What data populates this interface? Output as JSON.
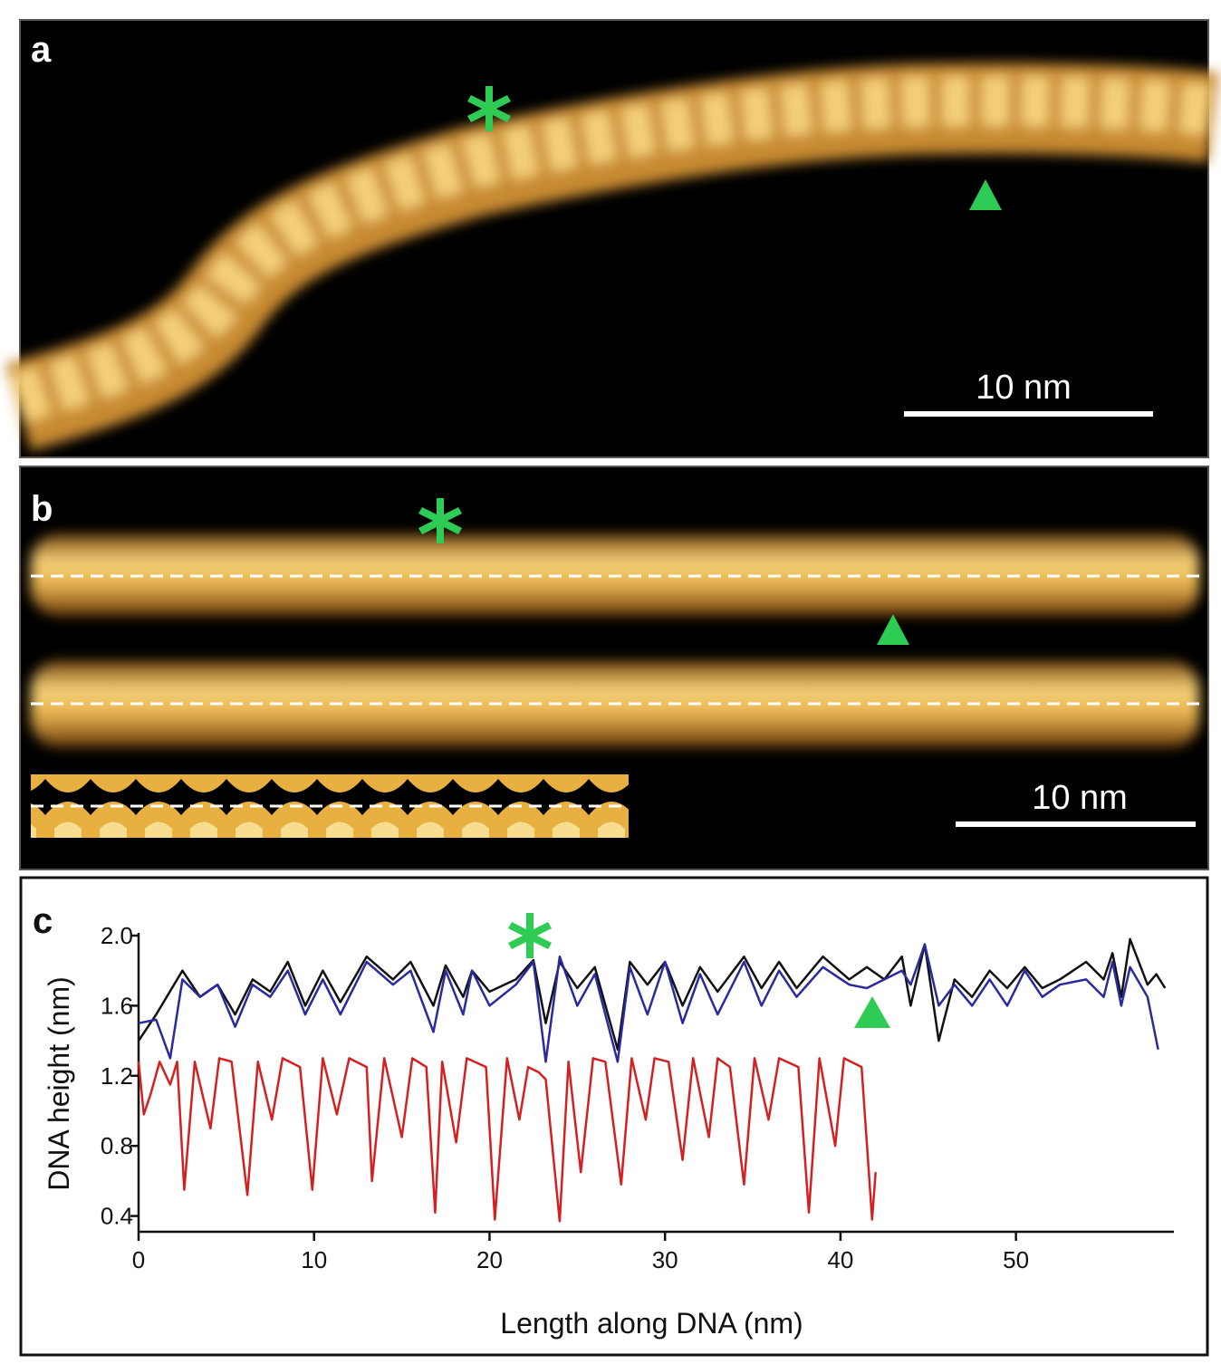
{
  "panels": {
    "a": {
      "label": "a",
      "scale_bar": "10 nm"
    },
    "b": {
      "label": "b",
      "scale_bar": "10 nm"
    }
  },
  "chart_data": {
    "type": "line",
    "panel_label": "c",
    "xlabel": "Length along DNA (nm)",
    "ylabel": "DNA height (nm)",
    "xlim": [
      0,
      59
    ],
    "ylim": [
      0.31,
      2.0
    ],
    "xticks": [
      0,
      10,
      20,
      30,
      40,
      50
    ],
    "yticks": [
      0.4,
      0.8,
      1.2,
      1.6,
      {
        "value": 2,
        "label": "2.0"
      }
    ],
    "series": [
      {
        "color": "#111111",
        "x": [
          0,
          1,
          2.5,
          3.5,
          4.5,
          5.5,
          6.5,
          7.5,
          8.5,
          9.5,
          10.5,
          11.5,
          13,
          14.5,
          15.5,
          16.8,
          17.5,
          18.5,
          19,
          20,
          21.5,
          22.5,
          23.2,
          24,
          25,
          26,
          27.3,
          28,
          29,
          30,
          31,
          32,
          33,
          34.5,
          35.5,
          36.5,
          37.5,
          39,
          40.5,
          41.5,
          42.5,
          43.5,
          44,
          44.8,
          45.6,
          46.5,
          47.5,
          48.5,
          49.5,
          50.5,
          51.5,
          52.5,
          54,
          55,
          55.5,
          56,
          56.5,
          57.5,
          58,
          58.5
        ],
        "values": [
          1.4,
          1.55,
          1.8,
          1.65,
          1.72,
          1.55,
          1.75,
          1.68,
          1.85,
          1.6,
          1.8,
          1.62,
          1.88,
          1.75,
          1.85,
          1.6,
          1.83,
          1.65,
          1.8,
          1.68,
          1.75,
          1.86,
          1.5,
          1.85,
          1.7,
          1.82,
          1.35,
          1.85,
          1.72,
          1.85,
          1.6,
          1.82,
          1.68,
          1.88,
          1.7,
          1.85,
          1.7,
          1.88,
          1.75,
          1.82,
          1.75,
          1.88,
          1.6,
          1.95,
          1.4,
          1.75,
          1.65,
          1.8,
          1.7,
          1.82,
          1.7,
          1.75,
          1.85,
          1.75,
          1.9,
          1.65,
          1.98,
          1.72,
          1.78,
          1.7
        ]
      },
      {
        "color": "#2a2aa0",
        "x": [
          0,
          1,
          1.8,
          2.5,
          3.5,
          4.5,
          5.5,
          6.5,
          7.5,
          8.5,
          9.5,
          10.5,
          11.5,
          13,
          14.5,
          15.5,
          16.8,
          17.5,
          18.5,
          19,
          20,
          21.5,
          22.5,
          23.2,
          24,
          25,
          26,
          27.3,
          28,
          29,
          30,
          31,
          32,
          33,
          34.5,
          35.5,
          36.5,
          37.5,
          39,
          40.5,
          41.5,
          42.5,
          43.5,
          44,
          44.8,
          45.6,
          46.5,
          47.5,
          48.5,
          49.5,
          50.5,
          51.5,
          52.5,
          54,
          55,
          55.5,
          56,
          56.5,
          57.5,
          58.1
        ],
        "values": [
          1.5,
          1.52,
          1.3,
          1.75,
          1.65,
          1.72,
          1.48,
          1.72,
          1.65,
          1.8,
          1.55,
          1.75,
          1.55,
          1.85,
          1.72,
          1.8,
          1.45,
          1.8,
          1.55,
          1.8,
          1.6,
          1.72,
          1.85,
          1.28,
          1.88,
          1.6,
          1.78,
          1.28,
          1.82,
          1.55,
          1.85,
          1.5,
          1.78,
          1.55,
          1.85,
          1.6,
          1.8,
          1.65,
          1.82,
          1.72,
          1.7,
          1.75,
          1.8,
          1.72,
          1.95,
          1.6,
          1.72,
          1.6,
          1.75,
          1.6,
          1.8,
          1.65,
          1.72,
          1.75,
          1.65,
          1.85,
          1.6,
          1.82,
          1.65,
          1.35
        ]
      },
      {
        "color": "#d42020",
        "x": [
          0,
          0.3,
          0.7,
          1.2,
          1.8,
          2.2,
          2.6,
          3.2,
          4.1,
          4.6,
          5.3,
          6.2,
          6.8,
          7.6,
          8.2,
          9.2,
          9.9,
          10.5,
          11.3,
          12,
          13,
          13.3,
          14,
          15,
          15.6,
          16.4,
          16.9,
          17.3,
          18.1,
          18.7,
          19.8,
          20.3,
          21,
          21.7,
          22.2,
          22.8,
          23.2,
          24,
          24.5,
          25.2,
          25.9,
          26.6,
          27.5,
          28.1,
          28.9,
          29.4,
          30.2,
          31,
          31.6,
          32.5,
          33,
          33.7,
          34.5,
          35.1,
          35.9,
          36.5,
          37.6,
          38.2,
          38.8,
          39.7,
          40.2,
          41.2,
          41.8,
          42
        ],
        "values": [
          1.28,
          0.98,
          1.1,
          1.28,
          1.15,
          1.28,
          0.55,
          1.28,
          0.9,
          1.3,
          1.28,
          0.52,
          1.28,
          0.95,
          1.3,
          1.25,
          0.55,
          1.3,
          0.98,
          1.3,
          1.25,
          0.6,
          1.3,
          0.85,
          1.3,
          1.25,
          0.42,
          1.28,
          0.82,
          1.3,
          1.25,
          0.38,
          1.3,
          0.95,
          1.25,
          1.22,
          1.18,
          0.37,
          1.28,
          0.65,
          1.3,
          1.28,
          0.58,
          1.3,
          0.95,
          1.3,
          1.28,
          0.72,
          1.3,
          0.85,
          1.3,
          1.25,
          0.58,
          1.3,
          0.95,
          1.3,
          1.25,
          0.42,
          1.3,
          0.8,
          1.3,
          1.25,
          0.38,
          0.65
        ]
      }
    ]
  }
}
